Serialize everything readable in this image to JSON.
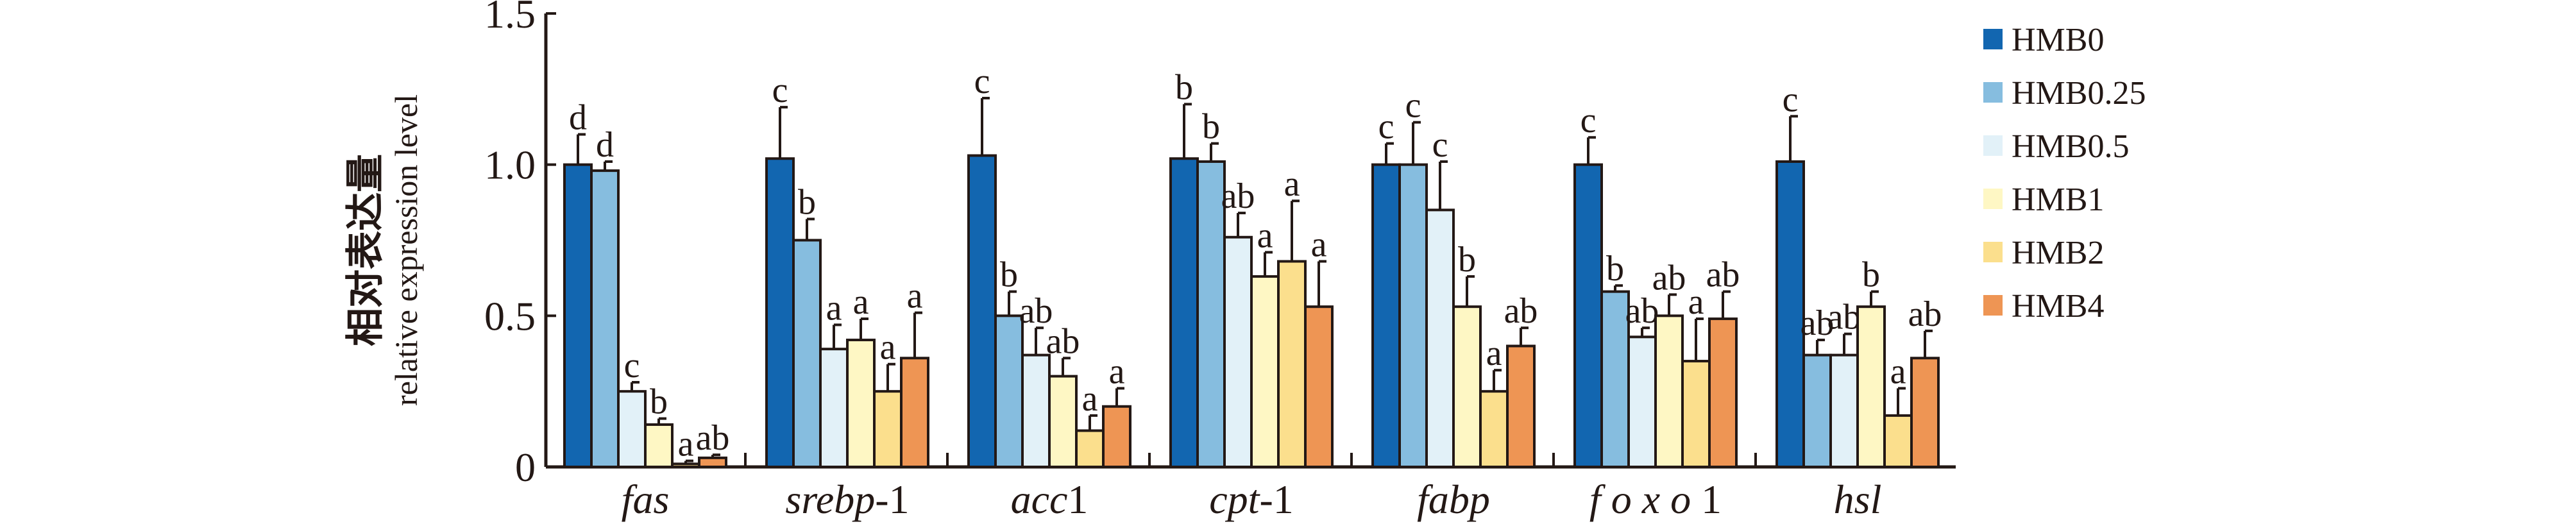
{
  "chart_data": {
    "type": "bar",
    "ylabel_cn": "相对表达量",
    "ylabel": "relative expression level",
    "xlabel": "",
    "ylim": [
      0,
      1.5
    ],
    "yticks": [
      0,
      0.5,
      1.0,
      1.5
    ],
    "ytick_labels": [
      "0",
      "0.5",
      "1.0",
      "1.5"
    ],
    "categories": [
      "fas",
      "srebp-1",
      "acc1",
      "cpt-1",
      "fabp",
      "foxo1",
      "hsl"
    ],
    "category_labels": [
      {
        "italic": "fas",
        "suffix": ""
      },
      {
        "italic": "srebp",
        "suffix": "-1"
      },
      {
        "italic": "acc",
        "suffix": "1"
      },
      {
        "italic": "cpt",
        "suffix": "-1"
      },
      {
        "italic": "fabp",
        "suffix": ""
      },
      {
        "italic": "f o x o",
        "suffix": " 1"
      },
      {
        "italic": "hsl",
        "suffix": ""
      }
    ],
    "legend_position": "right",
    "series": [
      {
        "name": "HMB0",
        "color": "#1266b0",
        "values": [
          1.0,
          1.02,
          1.03,
          1.02,
          1.0,
          1.0,
          1.01
        ],
        "errors": [
          0.1,
          0.17,
          0.19,
          0.18,
          0.07,
          0.09,
          0.15
        ],
        "letters": [
          "d",
          "c",
          "c",
          "b",
          "c",
          "c",
          "c"
        ]
      },
      {
        "name": "HMB0.25",
        "color": "#86bddf",
        "values": [
          0.98,
          0.75,
          0.5,
          1.01,
          1.0,
          0.58,
          0.37
        ],
        "errors": [
          0.03,
          0.07,
          0.08,
          0.06,
          0.14,
          0.02,
          0.05
        ],
        "letters": [
          "d",
          "b",
          "b",
          "b",
          "c",
          "b",
          "ab"
        ]
      },
      {
        "name": "HMB0.5",
        "color": "#e2f1f8",
        "values": [
          0.25,
          0.39,
          0.37,
          0.76,
          0.85,
          0.43,
          0.37
        ],
        "errors": [
          0.03,
          0.08,
          0.09,
          0.08,
          0.16,
          0.03,
          0.07
        ],
        "letters": [
          "c",
          "a",
          "ab",
          "ab",
          "c",
          "ab",
          "ab"
        ]
      },
      {
        "name": "HMB1",
        "color": "#fef7c4",
        "values": [
          0.14,
          0.42,
          0.3,
          0.63,
          0.53,
          0.5,
          0.53
        ],
        "errors": [
          0.02,
          0.07,
          0.06,
          0.08,
          0.1,
          0.07,
          0.05
        ],
        "letters": [
          "b",
          "a",
          "ab",
          "a",
          "b",
          "ab",
          "b"
        ]
      },
      {
        "name": "HMB2",
        "color": "#fbdf8d",
        "values": [
          0.01,
          0.25,
          0.12,
          0.68,
          0.25,
          0.35,
          0.17
        ],
        "errors": [
          0.01,
          0.09,
          0.05,
          0.2,
          0.07,
          0.14,
          0.09
        ],
        "letters": [
          "a",
          "a",
          "a",
          "a",
          "a",
          "a",
          "a"
        ]
      },
      {
        "name": "HMB4",
        "color": "#ee9554",
        "values": [
          0.03,
          0.36,
          0.2,
          0.53,
          0.4,
          0.49,
          0.36
        ],
        "errors": [
          0.01,
          0.15,
          0.06,
          0.15,
          0.06,
          0.09,
          0.09
        ],
        "letters": [
          "ab",
          "a",
          "a",
          "a",
          "ab",
          "ab",
          "ab"
        ]
      }
    ]
  }
}
